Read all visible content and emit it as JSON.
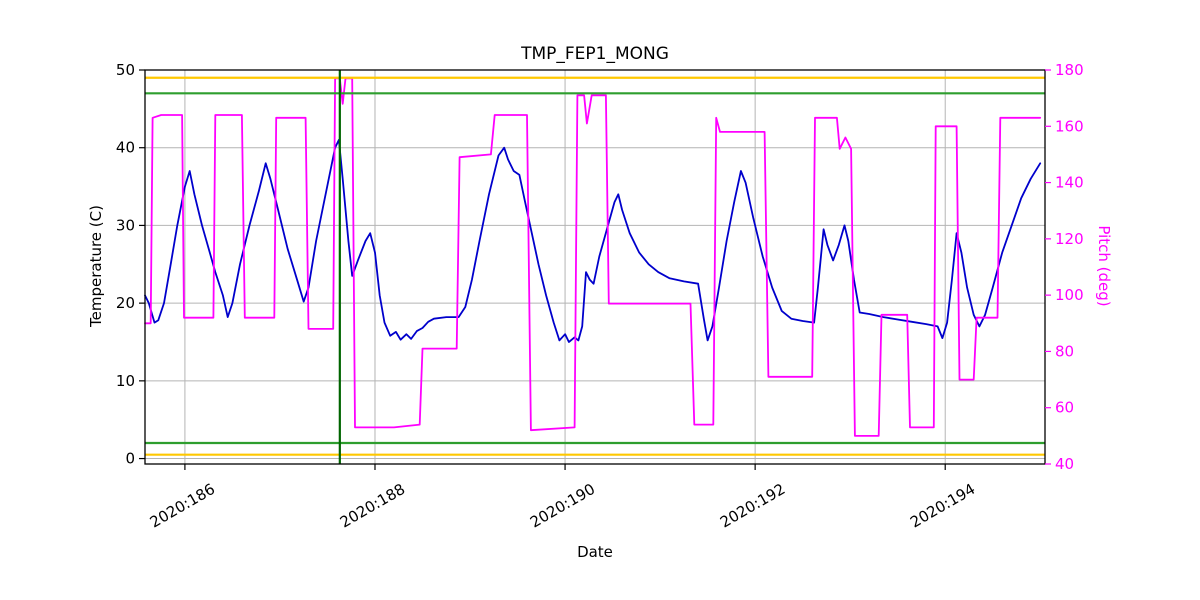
{
  "chart_data": {
    "type": "line",
    "title": "TMP_FEP1_MONG",
    "xlabel": "Date",
    "ylabel_left": "Temperature (C)",
    "ylabel_right": "Pitch (deg)",
    "xlim": [
      185.58,
      195.05
    ],
    "ylim_left": [
      -0.7,
      50
    ],
    "ylim_right": [
      40,
      180
    ],
    "grid": true,
    "x_ticks": [
      186,
      188,
      190,
      192,
      194
    ],
    "x_ticklabels": [
      "2020:186",
      "2020:188",
      "2020:190",
      "2020:192",
      "2020:194"
    ],
    "y_ticks_left": [
      0,
      10,
      20,
      30,
      40,
      50
    ],
    "y_ticklabels_left": [
      "0",
      "10",
      "20",
      "30",
      "40",
      "50"
    ],
    "y_ticks_right": [
      40,
      60,
      80,
      100,
      120,
      140,
      160,
      180
    ],
    "y_ticklabels_right": [
      "40",
      "60",
      "80",
      "100",
      "120",
      "140",
      "160",
      "180"
    ],
    "colors": {
      "temperature": "#0000cc",
      "pitch": "#ff00ff",
      "gold": "#ffc800",
      "green": "#2e9e2e",
      "darkgreen": "#006400",
      "grid": "#b4b4b4"
    },
    "limit_lines": [
      {
        "axis": "left",
        "value": 49,
        "color": "gold"
      },
      {
        "axis": "left",
        "value": 47,
        "color": "green"
      },
      {
        "axis": "left",
        "value": 2,
        "color": "green"
      },
      {
        "axis": "left",
        "value": 0.5,
        "color": "gold"
      }
    ],
    "vline": {
      "x": 187.63,
      "color": "darkgreen"
    },
    "series": [
      {
        "name": "Temperature (C)",
        "axis": "left",
        "color_key": "temperature",
        "points": [
          [
            185.58,
            21
          ],
          [
            185.62,
            20
          ],
          [
            185.68,
            17.5
          ],
          [
            185.72,
            17.8
          ],
          [
            185.78,
            20
          ],
          [
            185.85,
            25
          ],
          [
            185.92,
            30
          ],
          [
            186.0,
            35
          ],
          [
            186.05,
            37
          ],
          [
            186.1,
            34
          ],
          [
            186.18,
            30
          ],
          [
            186.25,
            27
          ],
          [
            186.32,
            24
          ],
          [
            186.4,
            21
          ],
          [
            186.45,
            18.2
          ],
          [
            186.5,
            20
          ],
          [
            186.58,
            25
          ],
          [
            186.68,
            30
          ],
          [
            186.78,
            34.5
          ],
          [
            186.85,
            38
          ],
          [
            186.9,
            36
          ],
          [
            186.98,
            32
          ],
          [
            187.08,
            27
          ],
          [
            187.18,
            23
          ],
          [
            187.25,
            20.2
          ],
          [
            187.3,
            22
          ],
          [
            187.38,
            28
          ],
          [
            187.48,
            34
          ],
          [
            187.58,
            40
          ],
          [
            187.62,
            41
          ],
          [
            187.66,
            36
          ],
          [
            187.72,
            28
          ],
          [
            187.76,
            23.5
          ],
          [
            187.82,
            25.5
          ],
          [
            187.9,
            28
          ],
          [
            187.95,
            29
          ],
          [
            188.0,
            26.5
          ],
          [
            188.05,
            21
          ],
          [
            188.1,
            17.5
          ],
          [
            188.16,
            15.8
          ],
          [
            188.22,
            16.3
          ],
          [
            188.27,
            15.3
          ],
          [
            188.33,
            16
          ],
          [
            188.38,
            15.4
          ],
          [
            188.44,
            16.4
          ],
          [
            188.5,
            16.8
          ],
          [
            188.56,
            17.6
          ],
          [
            188.62,
            18
          ],
          [
            188.75,
            18.2
          ],
          [
            188.88,
            18.2
          ],
          [
            188.95,
            19.5
          ],
          [
            189.02,
            23
          ],
          [
            189.1,
            28
          ],
          [
            189.2,
            34
          ],
          [
            189.3,
            39
          ],
          [
            189.36,
            40
          ],
          [
            189.4,
            38.5
          ],
          [
            189.46,
            37
          ],
          [
            189.52,
            36.5
          ],
          [
            189.58,
            33
          ],
          [
            189.65,
            29
          ],
          [
            189.72,
            25
          ],
          [
            189.8,
            21
          ],
          [
            189.88,
            17.5
          ],
          [
            189.94,
            15.2
          ],
          [
            190.0,
            16
          ],
          [
            190.04,
            15
          ],
          [
            190.1,
            15.6
          ],
          [
            190.14,
            15.2
          ],
          [
            190.18,
            17
          ],
          [
            190.22,
            24
          ],
          [
            190.26,
            23
          ],
          [
            190.3,
            22.5
          ],
          [
            190.36,
            26
          ],
          [
            190.44,
            29.5
          ],
          [
            190.52,
            33
          ],
          [
            190.56,
            34
          ],
          [
            190.6,
            32
          ],
          [
            190.68,
            29
          ],
          [
            190.78,
            26.5
          ],
          [
            190.88,
            25
          ],
          [
            190.98,
            24
          ],
          [
            191.1,
            23.2
          ],
          [
            191.25,
            22.8
          ],
          [
            191.4,
            22.5
          ],
          [
            191.46,
            18
          ],
          [
            191.5,
            15.2
          ],
          [
            191.55,
            17
          ],
          [
            191.62,
            22
          ],
          [
            191.7,
            28
          ],
          [
            191.78,
            33
          ],
          [
            191.85,
            37
          ],
          [
            191.9,
            35.5
          ],
          [
            191.98,
            31
          ],
          [
            192.08,
            26
          ],
          [
            192.18,
            22
          ],
          [
            192.28,
            19
          ],
          [
            192.38,
            18
          ],
          [
            192.5,
            17.7
          ],
          [
            192.62,
            17.5
          ],
          [
            192.66,
            22
          ],
          [
            192.72,
            29.5
          ],
          [
            192.76,
            27.5
          ],
          [
            192.82,
            25.5
          ],
          [
            192.88,
            27.5
          ],
          [
            192.94,
            30
          ],
          [
            192.98,
            28
          ],
          [
            193.04,
            23
          ],
          [
            193.1,
            18.8
          ],
          [
            193.2,
            18.6
          ],
          [
            193.35,
            18.2
          ],
          [
            193.5,
            17.9
          ],
          [
            193.65,
            17.6
          ],
          [
            193.8,
            17.3
          ],
          [
            193.92,
            17
          ],
          [
            193.97,
            15.5
          ],
          [
            194.02,
            17.5
          ],
          [
            194.07,
            23
          ],
          [
            194.12,
            29
          ],
          [
            194.17,
            26.5
          ],
          [
            194.23,
            22
          ],
          [
            194.3,
            18.5
          ],
          [
            194.36,
            17
          ],
          [
            194.42,
            18.5
          ],
          [
            194.5,
            22
          ],
          [
            194.6,
            26.5
          ],
          [
            194.7,
            30
          ],
          [
            194.8,
            33.5
          ],
          [
            194.9,
            36
          ],
          [
            195.0,
            38
          ]
        ]
      },
      {
        "name": "Pitch (deg)",
        "axis": "right",
        "color_key": "pitch",
        "points": [
          [
            185.58,
            90
          ],
          [
            185.64,
            90
          ],
          [
            185.66,
            163
          ],
          [
            185.75,
            164
          ],
          [
            185.97,
            164
          ],
          [
            185.99,
            92
          ],
          [
            186.3,
            92
          ],
          [
            186.32,
            164
          ],
          [
            186.6,
            164
          ],
          [
            186.63,
            92
          ],
          [
            186.94,
            92
          ],
          [
            186.96,
            163
          ],
          [
            187.27,
            163
          ],
          [
            187.3,
            88
          ],
          [
            187.56,
            88
          ],
          [
            187.58,
            177
          ],
          [
            187.63,
            177
          ],
          [
            187.66,
            168
          ],
          [
            187.69,
            177
          ],
          [
            187.76,
            177
          ],
          [
            187.79,
            53
          ],
          [
            188.2,
            53
          ],
          [
            188.47,
            54
          ],
          [
            188.5,
            81
          ],
          [
            188.86,
            81
          ],
          [
            188.89,
            149
          ],
          [
            189.22,
            150
          ],
          [
            189.26,
            164
          ],
          [
            189.6,
            164
          ],
          [
            189.64,
            52
          ],
          [
            190.1,
            53
          ],
          [
            190.13,
            171
          ],
          [
            190.2,
            171
          ],
          [
            190.23,
            161
          ],
          [
            190.28,
            171
          ],
          [
            190.43,
            171
          ],
          [
            190.46,
            97
          ],
          [
            191.32,
            97
          ],
          [
            191.36,
            54
          ],
          [
            191.56,
            54
          ],
          [
            191.59,
            163
          ],
          [
            191.63,
            158
          ],
          [
            192.1,
            158
          ],
          [
            192.14,
            71
          ],
          [
            192.6,
            71
          ],
          [
            192.63,
            163
          ],
          [
            192.86,
            163
          ],
          [
            192.89,
            152
          ],
          [
            192.95,
            156
          ],
          [
            193.01,
            152
          ],
          [
            193.05,
            50
          ],
          [
            193.3,
            50
          ],
          [
            193.33,
            93
          ],
          [
            193.6,
            93
          ],
          [
            193.63,
            53
          ],
          [
            193.88,
            53
          ],
          [
            193.9,
            160
          ],
          [
            194.12,
            160
          ],
          [
            194.15,
            70
          ],
          [
            194.3,
            70
          ],
          [
            194.33,
            92
          ],
          [
            194.55,
            92
          ],
          [
            194.58,
            163
          ],
          [
            195.0,
            163
          ]
        ]
      }
    ]
  }
}
